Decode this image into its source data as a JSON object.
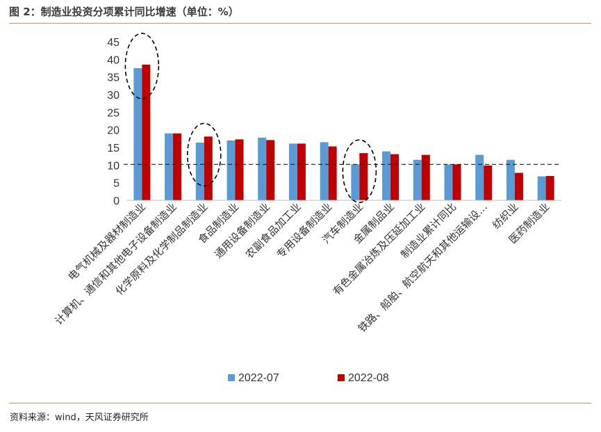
{
  "title": "图 2：制造业投资分项累计同比增速（单位：%）",
  "source": "资料来源：wind，天风证券研究所",
  "colors": {
    "series_0": "#5b9bd5",
    "series_1": "#c00000",
    "rule": "#e58f4a"
  },
  "chart_data": {
    "type": "bar",
    "title": "",
    "xlabel": "",
    "ylabel": "",
    "ylim": [
      0,
      45
    ],
    "yticks": [
      0,
      5,
      10,
      15,
      20,
      25,
      30,
      35,
      40,
      45
    ],
    "grid": false,
    "legend_position": "bottom",
    "reference_line": 10.2,
    "categories": [
      "电气机械及器材制造业",
      "计算机、通信和其他电子设备制造业",
      "化学原料及化学制品制造业",
      "食品制造业",
      "通用设备制造业",
      "农副食品加工业",
      "专用设备制造业",
      "汽车制造业",
      "金属制品业",
      "有色金属冶炼及压延加工业",
      "制造业累计同比",
      "铁路、船舶、航空航天和其他运输设…",
      "纺织业",
      "医药制造业"
    ],
    "series": [
      {
        "name": "2022-07",
        "values": [
          37.5,
          19.0,
          16.4,
          17.0,
          17.8,
          16.1,
          16.5,
          10.2,
          13.9,
          11.5,
          10.2,
          12.9,
          11.5,
          6.8
        ]
      },
      {
        "name": "2022-08",
        "values": [
          38.5,
          19.0,
          18.1,
          17.3,
          17.1,
          16.1,
          15.3,
          13.4,
          13.1,
          12.9,
          10.2,
          9.9,
          7.8,
          6.9
        ]
      }
    ],
    "highlighted_categories": [
      "电气机械及器材制造业",
      "化学原料及化学制品制造业",
      "汽车制造业"
    ]
  }
}
